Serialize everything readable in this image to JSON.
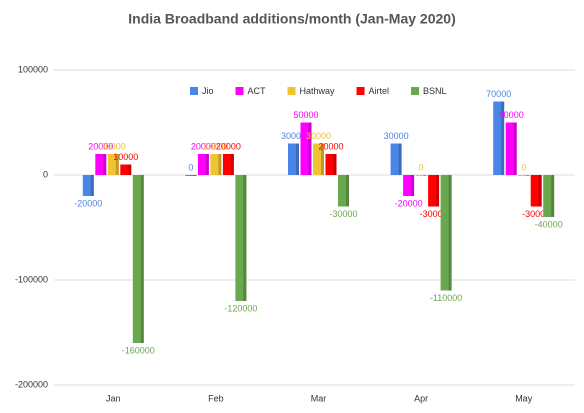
{
  "chart_data": {
    "type": "bar",
    "title": "India Broadband additions/month (Jan-May 2020)",
    "categories": [
      "Jan",
      "Feb",
      "Mar",
      "Apr",
      "May"
    ],
    "series": [
      {
        "name": "Jio",
        "color": "#4a86e8",
        "values": [
          -20000,
          0,
          30000,
          30000,
          70000
        ]
      },
      {
        "name": "ACT",
        "color": "#ff00ff",
        "values": [
          20000,
          20000,
          50000,
          -20000,
          50000
        ]
      },
      {
        "name": "Hathway",
        "color": "#f1c232",
        "values": [
          20000,
          20000,
          30000,
          0,
          0
        ]
      },
      {
        "name": "Airtel",
        "color": "#ff0000",
        "values": [
          10000,
          20000,
          20000,
          -30000,
          -30000
        ]
      },
      {
        "name": "BSNL",
        "color": "#6aa84f",
        "values": [
          -160000,
          -120000,
          -30000,
          -110000,
          -40000
        ]
      }
    ],
    "ylim": [
      -200000,
      100000
    ],
    "yticks": [
      -200000,
      -100000,
      0,
      100000
    ],
    "grid": true,
    "legend": "top"
  }
}
